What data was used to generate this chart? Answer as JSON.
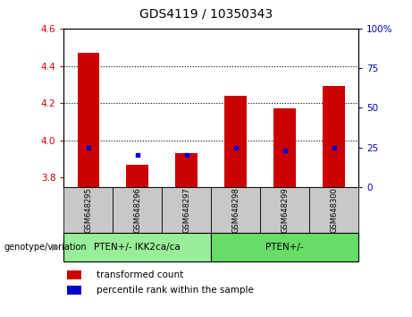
{
  "title": "GDS4119 / 10350343",
  "samples": [
    "GSM648295",
    "GSM648296",
    "GSM648297",
    "GSM648298",
    "GSM648299",
    "GSM648300"
  ],
  "transformed_counts": [
    4.47,
    3.87,
    3.93,
    4.24,
    4.17,
    4.29
  ],
  "percentile_ranks": [
    25,
    20,
    20,
    25,
    23,
    25
  ],
  "ylim_left": [
    3.75,
    4.6
  ],
  "ylim_right": [
    0,
    100
  ],
  "yticks_left": [
    3.8,
    4.0,
    4.2,
    4.4,
    4.6
  ],
  "yticks_right": [
    0,
    25,
    50,
    75,
    100
  ],
  "groups": [
    {
      "label": "PTEN+/- IKK2ca/ca",
      "indices": [
        0,
        1,
        2
      ]
    },
    {
      "label": "PTEN+/-",
      "indices": [
        3,
        4,
        5
      ]
    }
  ],
  "bar_color": "#cc0000",
  "percentile_color": "#0000cc",
  "bar_bottom": 3.75,
  "label_area_color": "#c8c8c8",
  "group_area_color_1": "#99ee99",
  "group_area_color_2": "#66dd66",
  "left_axis_color": "#cc0000",
  "right_axis_color": "#0000cc",
  "legend_red_label": "transformed count",
  "legend_blue_label": "percentile rank within the sample",
  "genotype_label": "genotype/variation"
}
